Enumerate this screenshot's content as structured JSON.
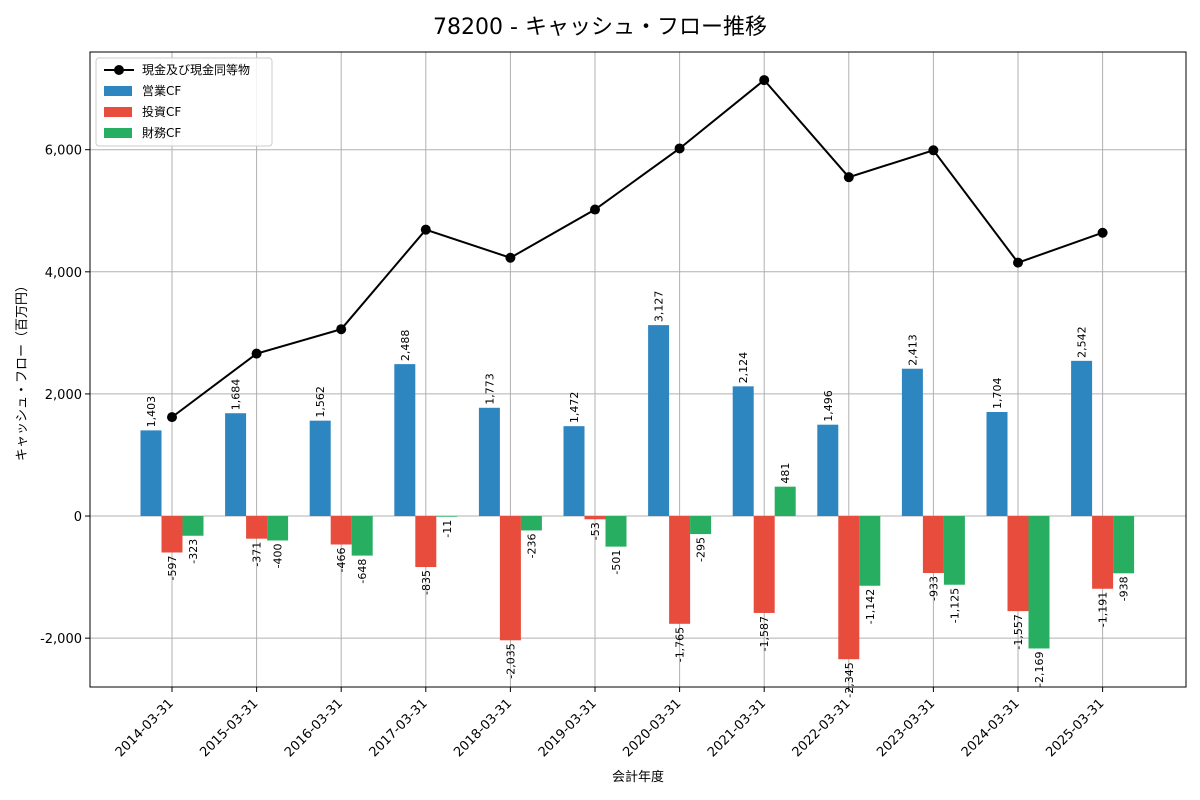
{
  "chart_data": {
    "type": "bar",
    "title": "78200 - キャッシュ・フロー推移",
    "xlabel": "会計年度",
    "ylabel": "キャッシュ・フロー（百万円）",
    "categories": [
      "2014-03-31",
      "2015-03-31",
      "2016-03-31",
      "2017-03-31",
      "2018-03-31",
      "2019-03-31",
      "2020-03-31",
      "2021-03-31",
      "2022-03-31",
      "2023-03-31",
      "2024-03-31",
      "2025-03-31"
    ],
    "series": [
      {
        "name": "営業CF",
        "type": "bar",
        "color": "#2e86c1",
        "values": [
          1403,
          1684,
          1562,
          2488,
          1773,
          1472,
          3127,
          2124,
          1496,
          2413,
          1704,
          2542
        ],
        "labels": [
          "1,403",
          "1,684",
          "1,562",
          "2,488",
          "1,773",
          "1,472",
          "3,127",
          "2,124",
          "1,496",
          "2,413",
          "1,704",
          "2,542"
        ]
      },
      {
        "name": "投資CF",
        "type": "bar",
        "color": "#e74c3c",
        "values": [
          -597,
          -371,
          -466,
          -835,
          -2035,
          -53,
          -1765,
          -1587,
          -2345,
          -933,
          -1557,
          -1191
        ],
        "labels": [
          "-597",
          "-371",
          "-466",
          "-835",
          "-2,035",
          "-53",
          "-1,765",
          "-1,587",
          "-2,345",
          "-933",
          "-1,557",
          "-1,191"
        ]
      },
      {
        "name": "財務CF",
        "type": "bar",
        "color": "#27ae60",
        "values": [
          -323,
          -400,
          -648,
          -11,
          -236,
          -501,
          -295,
          481,
          -1142,
          -1125,
          -2169,
          -938
        ],
        "labels": [
          "-323",
          "-400",
          "-648",
          "-11",
          "-236",
          "-501",
          "-295",
          "481",
          "-1,142",
          "-1,125",
          "-2,169",
          "-938"
        ]
      },
      {
        "name": "現金及び現金同等物",
        "type": "line",
        "color": "#000000",
        "values": [
          1620,
          2660,
          3060,
          4690,
          4230,
          5020,
          6020,
          7140,
          5550,
          5990,
          4150,
          4640
        ]
      }
    ],
    "yticks": [
      -2000,
      0,
      2000,
      4000,
      6000
    ],
    "ytick_labels": [
      "-2,000",
      "0",
      "2,000",
      "4,000",
      "6,000"
    ],
    "ylim": [
      -2800,
      7600
    ],
    "grid": true,
    "legend": "top-left"
  }
}
